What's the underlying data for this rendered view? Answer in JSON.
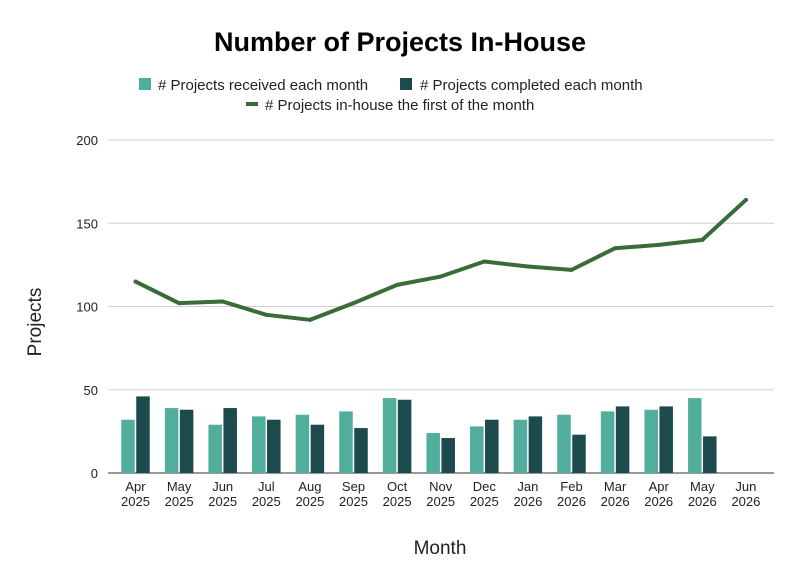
{
  "chart_data": {
    "type": "bar",
    "title": "Number of Projects In-House",
    "xlabel": "Month",
    "ylabel": "Projects",
    "ylim": [
      0,
      200
    ],
    "yticks": [
      0,
      50,
      100,
      150,
      200
    ],
    "grid": true,
    "legend_position": "top",
    "categories": [
      [
        "Apr",
        "2025"
      ],
      [
        "May",
        "2025"
      ],
      [
        "Jun",
        "2025"
      ],
      [
        "Jul",
        "2025"
      ],
      [
        "Aug",
        "2025"
      ],
      [
        "Sep",
        "2025"
      ],
      [
        "Oct",
        "2025"
      ],
      [
        "Nov",
        "2025"
      ],
      [
        "Dec",
        "2025"
      ],
      [
        "Jan",
        "2026"
      ],
      [
        "Feb",
        "2026"
      ],
      [
        "Mar",
        "2026"
      ],
      [
        "Apr",
        "2026"
      ],
      [
        "May",
        "2026"
      ],
      [
        "Jun",
        "2026"
      ]
    ],
    "series": [
      {
        "name": "# Projects received each month",
        "kind": "bar",
        "color": "#52ae9c",
        "values": [
          32,
          39,
          29,
          34,
          35,
          37,
          45,
          24,
          28,
          32,
          35,
          37,
          38,
          45,
          null
        ]
      },
      {
        "name": "# Projects completed each month",
        "kind": "bar",
        "color": "#1c4a4d",
        "values": [
          46,
          38,
          39,
          32,
          29,
          27,
          44,
          21,
          32,
          34,
          23,
          40,
          40,
          22,
          null
        ]
      },
      {
        "name": "# Projects in-house the first of the month",
        "kind": "line",
        "color": "#3a6b3b",
        "values": [
          115,
          102,
          103,
          95,
          92,
          102,
          113,
          118,
          127,
          124,
          122,
          135,
          137,
          140,
          164
        ]
      }
    ]
  }
}
